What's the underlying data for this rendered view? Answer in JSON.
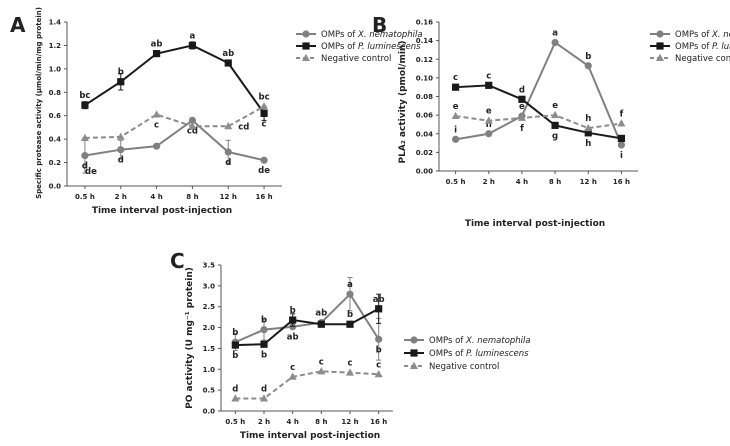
{
  "colors": {
    "xn": "#808080",
    "pl": "#1a1a1a",
    "neg": "#8c8c8c",
    "axis": "#555555"
  },
  "legend": [
    {
      "prefix": "OMPs of ",
      "species": "X. nematophila",
      "key": "xn",
      "marker": "circle",
      "dash": false
    },
    {
      "prefix": "OMPs of ",
      "species": "P. luminescens",
      "key": "pl",
      "marker": "square",
      "dash": false
    },
    {
      "prefix": "Negative control",
      "species": "",
      "key": "neg",
      "marker": "triangle",
      "dash": true
    }
  ],
  "chart_data": [
    {
      "panel": "A",
      "type": "line",
      "title": "",
      "xlabel": "Time interval post-injection",
      "ylabel": "Specific protease activity (μmol/min/mg protein)",
      "categories": [
        "0.5 h",
        "2 h",
        "4 h",
        "8 h",
        "12 h",
        "16 h"
      ],
      "ylim": [
        0,
        1.4
      ],
      "yticks": [
        "0.0",
        "0.2",
        "0.4",
        "0.6",
        "0.8",
        "1.0",
        "1.2",
        "1.4"
      ],
      "series": [
        {
          "name": "OMPs of X. nematophila",
          "key": "xn",
          "values": [
            0.26,
            0.31,
            0.34,
            0.56,
            0.29,
            0.22
          ],
          "errors": [
            0.15,
            0.08,
            0.0,
            0.02,
            0.1,
            0.0
          ],
          "labels": [
            "d",
            "d",
            "",
            "cd",
            "d",
            "de"
          ],
          "label_pos": [
            "below",
            "below",
            "",
            "below",
            "below",
            "below"
          ]
        },
        {
          "name": "OMPs of P. luminescens",
          "key": "pl",
          "values": [
            0.69,
            0.89,
            1.13,
            1.2,
            1.05,
            0.62
          ],
          "errors": [
            0.03,
            0.07,
            0.0,
            0.03,
            0.0,
            0.06
          ],
          "labels": [
            "bc",
            "b",
            "ab",
            "a",
            "ab",
            "c"
          ],
          "label_pos": [
            "above",
            "above",
            "above",
            "above",
            "above",
            "below"
          ]
        },
        {
          "name": "Negative control",
          "key": "neg",
          "values": [
            0.41,
            0.42,
            0.61,
            0.51,
            0.51,
            0.68
          ],
          "errors": [
            0.0,
            0.0,
            0.0,
            0.0,
            0.0,
            0.0
          ],
          "labels": [
            "de",
            "",
            "c",
            "",
            "cd",
            "bc"
          ],
          "label_pos": [
            "belowfar",
            "",
            "below",
            "",
            "right",
            "above"
          ]
        }
      ]
    },
    {
      "panel": "B",
      "type": "line",
      "title": "",
      "xlabel": "Time interval post-injection",
      "ylabel": "PLA₂ activity (pmol/min)",
      "categories": [
        "0.5 h",
        "2 h",
        "4 h",
        "8 h",
        "12 h",
        "16 h"
      ],
      "ylim": [
        0,
        0.16
      ],
      "yticks": [
        "0.00",
        "0.02",
        "0.04",
        "0.06",
        "0.08",
        "0.10",
        "0.12",
        "0.14",
        "0.16"
      ],
      "series": [
        {
          "name": "OMPs of X. nematophila",
          "key": "xn",
          "values": [
            0.034,
            0.04,
            0.059,
            0.138,
            0.113,
            0.028
          ],
          "errors": [
            0.0,
            0.0,
            0.0,
            0.0,
            0.0,
            0.0
          ],
          "labels": [
            "i",
            "h",
            "e",
            "a",
            "b",
            "i"
          ],
          "label_pos": [
            "above",
            "above",
            "above",
            "above",
            "above",
            "below"
          ]
        },
        {
          "name": "OMPs of P. luminescens",
          "key": "pl",
          "values": [
            0.09,
            0.092,
            0.077,
            0.049,
            0.041,
            0.035
          ],
          "errors": [
            0.0,
            0.0,
            0.0,
            0.0,
            0.0,
            0.0
          ],
          "labels": [
            "c",
            "c",
            "d",
            "g",
            "h",
            ""
          ],
          "label_pos": [
            "above",
            "above",
            "above",
            "below",
            "below",
            ""
          ]
        },
        {
          "name": "Negative control",
          "key": "neg",
          "values": [
            0.059,
            0.054,
            0.057,
            0.06,
            0.046,
            0.051
          ],
          "errors": [
            0.0,
            0.0,
            0.0,
            0.0,
            0.0,
            0.0
          ],
          "labels": [
            "e",
            "e",
            "f",
            "e",
            "h",
            "f"
          ],
          "label_pos": [
            "above",
            "above",
            "below",
            "above",
            "above",
            "above"
          ]
        }
      ]
    },
    {
      "panel": "C",
      "type": "line",
      "title": "",
      "xlabel": "Time interval post-injection",
      "ylabel": "PO activity (U mg⁻¹ protein)",
      "categories": [
        "0.5 h",
        "2 h",
        "4 h",
        "8 h",
        "12 h",
        "16 h"
      ],
      "ylim": [
        0,
        3.5
      ],
      "yticks": [
        "0.0",
        "0.5",
        "1.0",
        "1.5",
        "2.0",
        "2.5",
        "3.0",
        "3.5"
      ],
      "series": [
        {
          "name": "OMPs of X. nematophila",
          "key": "xn",
          "values": [
            1.65,
            1.95,
            2.02,
            2.12,
            2.8,
            1.72
          ],
          "errors": [
            0.2,
            0.25,
            0.0,
            0.0,
            0.4,
            0.5
          ],
          "labels": [
            "b",
            "b",
            "ab",
            "ab",
            "a",
            "b"
          ],
          "label_pos": [
            "above",
            "above",
            "below",
            "above",
            "above",
            "below"
          ]
        },
        {
          "name": "OMPs of P. luminescens",
          "key": "pl",
          "values": [
            1.58,
            1.6,
            2.18,
            2.08,
            2.08,
            2.45
          ],
          "errors": [
            0.0,
            0.0,
            0.15,
            0.0,
            0.0,
            0.35
          ],
          "labels": [
            "b",
            "b",
            "b",
            "",
            "b",
            "ab"
          ],
          "label_pos": [
            "below",
            "below",
            "above",
            "",
            "above",
            "above"
          ]
        },
        {
          "name": "Negative control",
          "key": "neg",
          "values": [
            0.3,
            0.3,
            0.82,
            0.95,
            0.92,
            0.88
          ],
          "errors": [
            0.0,
            0.0,
            0.0,
            0.0,
            0.0,
            0.0
          ],
          "labels": [
            "d",
            "d",
            "c",
            "c",
            "c",
            "c"
          ],
          "label_pos": [
            "above",
            "above",
            "above",
            "above",
            "above",
            "above"
          ]
        }
      ]
    }
  ]
}
